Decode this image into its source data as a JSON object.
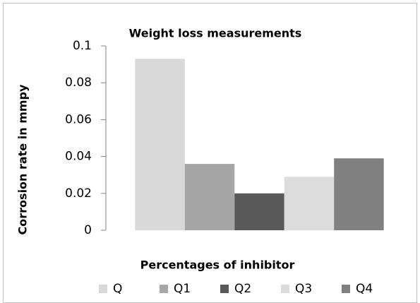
{
  "chart_data": {
    "type": "bar",
    "title": "Weight loss measurements",
    "x_label": "Percentages of inhibitor",
    "y_label": "Corrosion rate in mmpy",
    "categories": [
      null
    ],
    "series": [
      {
        "name": "Q",
        "color": "#d9d9d9",
        "values": [
          0.093
        ]
      },
      {
        "name": "Q1",
        "color": "#a6a6a6",
        "values": [
          0.036
        ]
      },
      {
        "name": "Q2",
        "color": "#595959",
        "values": [
          0.02
        ]
      },
      {
        "name": "Q3",
        "color": "#dcdcdc",
        "values": [
          0.029
        ]
      },
      {
        "name": "Q4",
        "color": "#808080",
        "values": [
          0.039
        ]
      }
    ],
    "ylim": [
      0,
      0.1
    ],
    "yticks": [
      0,
      0.02,
      0.04,
      0.06,
      0.08,
      0.1
    ],
    "grid": false,
    "legend": "bottom"
  }
}
